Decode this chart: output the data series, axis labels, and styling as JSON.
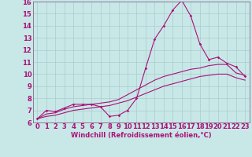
{
  "xlabel": "Windchill (Refroidissement éolien,°C)",
  "bg_color": "#c8e8e8",
  "line_color": "#aa1177",
  "grid_color": "#aacccc",
  "axis_color": "#886688",
  "xlim": [
    -0.5,
    23.5
  ],
  "ylim": [
    6,
    16
  ],
  "yticks": [
    6,
    7,
    8,
    9,
    10,
    11,
    12,
    13,
    14,
    15,
    16
  ],
  "xticks": [
    0,
    1,
    2,
    3,
    4,
    5,
    6,
    7,
    8,
    9,
    10,
    11,
    12,
    13,
    14,
    15,
    16,
    17,
    18,
    19,
    20,
    21,
    22,
    23
  ],
  "series1_x": [
    0,
    1,
    2,
    3,
    4,
    5,
    6,
    7,
    8,
    9,
    10,
    11,
    12,
    13,
    14,
    15,
    16,
    17,
    18,
    19,
    20,
    21,
    22,
    23
  ],
  "series1_y": [
    6.3,
    7.0,
    6.9,
    7.2,
    7.5,
    7.5,
    7.5,
    7.3,
    6.5,
    6.6,
    7.0,
    8.0,
    10.5,
    12.9,
    14.0,
    15.3,
    16.1,
    14.8,
    12.5,
    11.2,
    11.4,
    10.9,
    10.6,
    9.8
  ],
  "series2_x": [
    0,
    1,
    2,
    3,
    4,
    5,
    6,
    7,
    8,
    9,
    10,
    11,
    12,
    13,
    14,
    15,
    16,
    17,
    18,
    19,
    20,
    21,
    22,
    23
  ],
  "series2_y": [
    6.3,
    6.7,
    6.8,
    7.1,
    7.3,
    7.4,
    7.5,
    7.6,
    7.7,
    7.9,
    8.3,
    8.7,
    9.1,
    9.5,
    9.8,
    10.0,
    10.2,
    10.4,
    10.5,
    10.7,
    10.8,
    10.8,
    10.1,
    9.9
  ],
  "series3_x": [
    0,
    1,
    2,
    3,
    4,
    5,
    6,
    7,
    8,
    9,
    10,
    11,
    12,
    13,
    14,
    15,
    16,
    17,
    18,
    19,
    20,
    21,
    22,
    23
  ],
  "series3_y": [
    6.3,
    6.5,
    6.6,
    6.8,
    7.0,
    7.1,
    7.2,
    7.3,
    7.4,
    7.6,
    7.8,
    8.1,
    8.4,
    8.7,
    9.0,
    9.2,
    9.4,
    9.6,
    9.8,
    9.9,
    10.0,
    10.0,
    9.7,
    9.5
  ],
  "tick_fontsize": 6,
  "xlabel_fontsize": 6
}
